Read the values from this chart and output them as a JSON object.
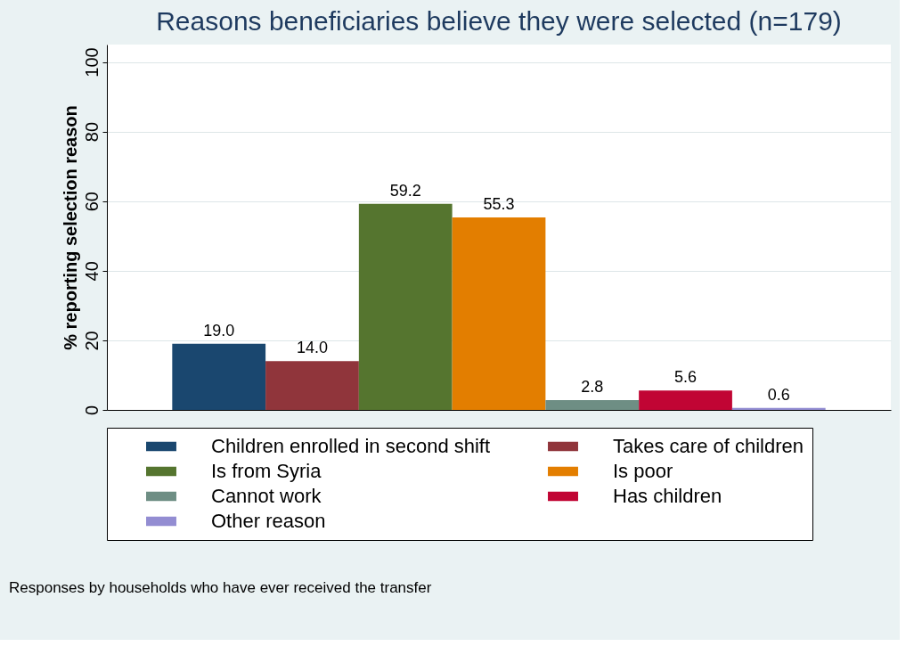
{
  "chart_data": {
    "type": "bar",
    "title": "Reasons beneficiaries believe they were selected (n=179)",
    "ylabel": "% reporting selection reason",
    "categories": [
      null
    ],
    "series": [
      {
        "name": "Children enrolled in second shift",
        "color": "#1a476f",
        "values": [
          19.0
        ],
        "value_labels": [
          "19.0"
        ]
      },
      {
        "name": "Takes care of children",
        "color": "#90353b",
        "values": [
          14.0
        ],
        "value_labels": [
          "14.0"
        ]
      },
      {
        "name": "Is from Syria",
        "color": "#55752f",
        "values": [
          59.2
        ],
        "value_labels": [
          "59.2"
        ]
      },
      {
        "name": "Is poor",
        "color": "#e37e00",
        "values": [
          55.3
        ],
        "value_labels": [
          "55.3"
        ]
      },
      {
        "name": "Cannot work",
        "color": "#6e8e84",
        "values": [
          2.8
        ],
        "value_labels": [
          "2.8"
        ]
      },
      {
        "name": "Has children",
        "color": "#c10534",
        "values": [
          5.6
        ],
        "value_labels": [
          "5.6"
        ]
      },
      {
        "name": "Other reason",
        "color": "#938dd2",
        "values": [
          0.6
        ],
        "value_labels": [
          "0.6"
        ]
      }
    ],
    "ylim": [
      0,
      105
    ],
    "yticks": [
      0,
      20,
      40,
      60,
      80,
      100
    ],
    "grid": "y",
    "legend": "bottom",
    "annotations": [
      "Responses by households who have ever received the transfer"
    ]
  }
}
